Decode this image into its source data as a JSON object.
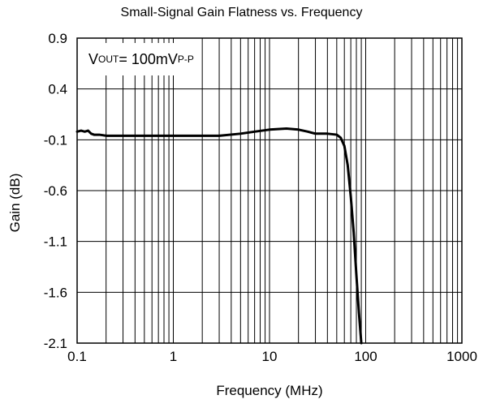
{
  "chart_data": {
    "type": "line",
    "title": "Small-Signal Gain Flatness vs. Frequency",
    "xlabel": "Frequency (MHz)",
    "ylabel": "Gain (dB)",
    "x_scale": "log",
    "xlim": [
      0.1,
      1000
    ],
    "ylim": [
      -2.1,
      0.9
    ],
    "x_ticks": [
      0.1,
      1,
      10,
      100,
      1000
    ],
    "x_tick_labels": [
      "0.1",
      "1",
      "10",
      "100",
      "1000"
    ],
    "y_ticks": [
      0.9,
      0.4,
      -0.1,
      -0.6,
      -1.1,
      -1.6,
      -2.1
    ],
    "y_tick_labels": [
      "0.9",
      "0.4",
      "-0.1",
      "-0.6",
      "-1.1",
      "-1.6",
      "-2.1"
    ],
    "grid": true,
    "annotation": {
      "prefix": "V",
      "prefix_sub": "OUT",
      "middle": " = 100mV",
      "suffix_sub": "P-P"
    },
    "series": [
      {
        "x": [
          0.1,
          0.11,
          0.12,
          0.13,
          0.14,
          0.15,
          0.17,
          0.2,
          0.3,
          0.5,
          1,
          2,
          3,
          5,
          7,
          10,
          15,
          20,
          25,
          30,
          40,
          50,
          55,
          60,
          65,
          70,
          75,
          80,
          85,
          90
        ],
        "y": [
          -0.02,
          -0.01,
          -0.02,
          -0.01,
          -0.04,
          -0.05,
          -0.05,
          -0.06,
          -0.06,
          -0.06,
          -0.06,
          -0.06,
          -0.06,
          -0.04,
          -0.02,
          0.0,
          0.01,
          0.0,
          -0.02,
          -0.04,
          -0.04,
          -0.05,
          -0.08,
          -0.16,
          -0.35,
          -0.66,
          -1.01,
          -1.43,
          -1.8,
          -2.1
        ],
        "color": "#000000"
      }
    ]
  }
}
